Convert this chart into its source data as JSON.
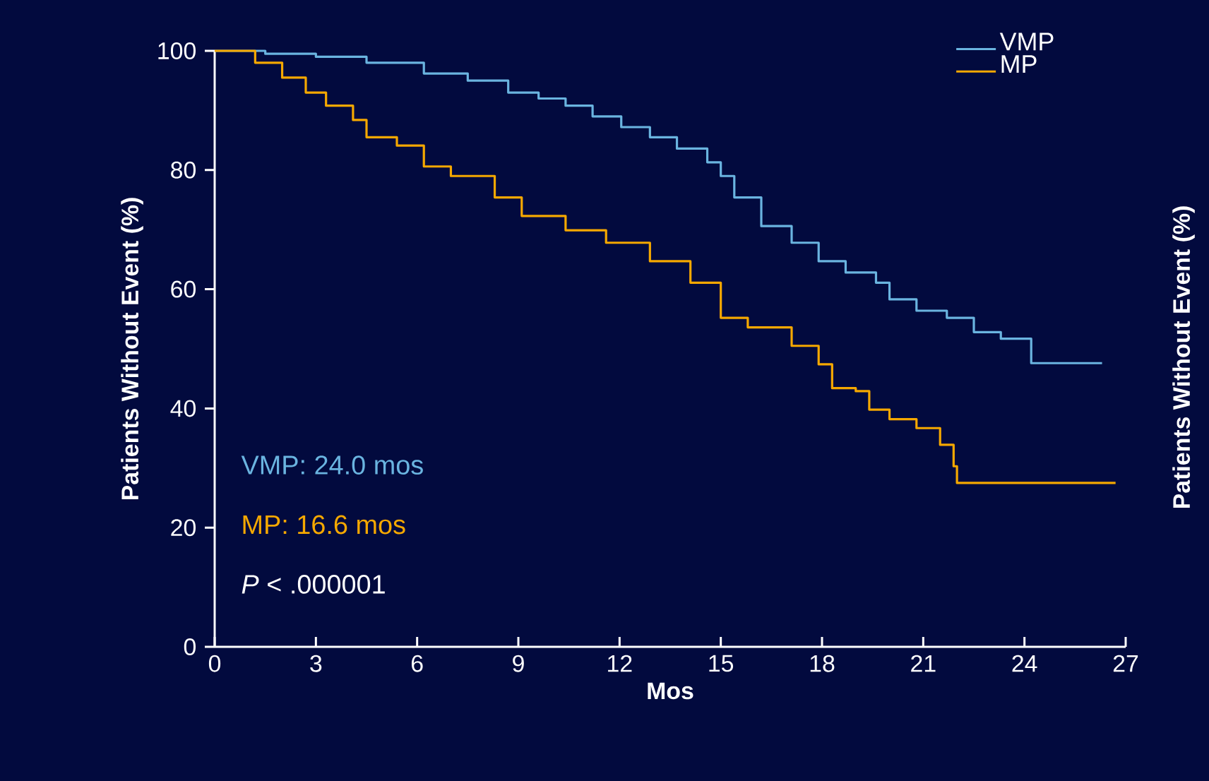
{
  "chart_data": {
    "type": "step",
    "xlabel": "Mos",
    "ylabel": "Patients Without Event (%)",
    "y2label": "Patients Without Event (%)",
    "xlim": [
      0,
      27
    ],
    "xticks": [
      0,
      3,
      6,
      9,
      12,
      15,
      18,
      21,
      24,
      27
    ],
    "ylim": [
      0,
      100
    ],
    "yticks": [
      0,
      20,
      40,
      60,
      80,
      100
    ],
    "grid": false,
    "legend": "top right",
    "marker": "none",
    "line_style": "solid",
    "series": [
      {
        "name": "VMP",
        "color": "#6ab4e0",
        "x": [
          0,
          1.5,
          3,
          4.5,
          6.2,
          7.5,
          8.7,
          9.6,
          10.4,
          11.2,
          12.05,
          12.9,
          13.7,
          14.6,
          15,
          15.4,
          16.2,
          17.1,
          17.9,
          18.7,
          19.6,
          20,
          20.8,
          21.7,
          22.5,
          23.3,
          24.2,
          26.3
        ],
        "values": [
          100,
          99.5,
          99,
          98,
          96.2,
          95,
          93,
          92,
          90.8,
          89,
          87.2,
          85.5,
          83.6,
          81.3,
          79,
          75.4,
          70.6,
          67.8,
          64.7,
          62.8,
          61.1,
          58.3,
          56.4,
          55.2,
          52.8,
          51.7,
          47.6,
          47.6
        ]
      },
      {
        "name": "MP",
        "color": "#f5a800",
        "x": [
          0,
          1.2,
          2,
          2.7,
          3.3,
          4.1,
          4.5,
          5.4,
          6.2,
          7,
          8.3,
          9.1,
          10.4,
          11.6,
          12.9,
          14.1,
          15,
          15.8,
          17.1,
          17.9,
          18.3,
          19,
          19.4,
          20,
          20.8,
          21.5,
          21.9,
          22,
          26.7
        ],
        "values": [
          100,
          98,
          95.5,
          93,
          90.8,
          88.4,
          85.5,
          84.1,
          80.6,
          79,
          75.4,
          72.3,
          69.9,
          67.8,
          64.7,
          61.1,
          55.2,
          53.6,
          50.5,
          47.4,
          43.4,
          42.9,
          39.8,
          38.2,
          36.7,
          33.9,
          30.3,
          27.5,
          27.5
        ]
      }
    ],
    "annotations": [
      "VMP: 24.0 mos",
      "MP: 16.6 mos",
      "*P* < .000001"
    ]
  }
}
